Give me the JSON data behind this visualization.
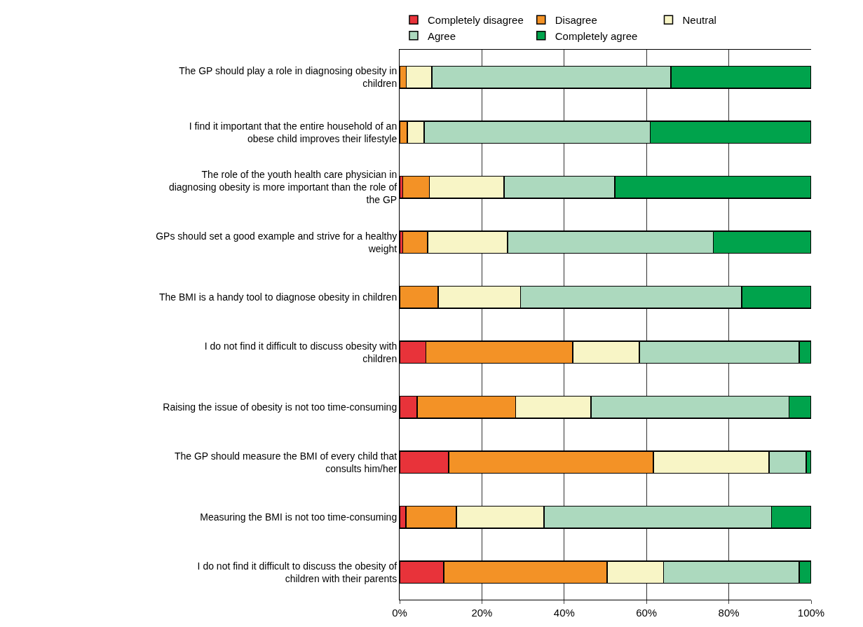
{
  "chart_data": {
    "type": "bar",
    "orientation": "horizontal",
    "stacked": true,
    "legend": "top",
    "categories": [
      "The GP should play a role in diagnosing obesity in children",
      "I find it important that the entire household of an obese child improves their lifestyle",
      "The role of the youth health care physician in diagnosing obesity is more important than the role of the GP",
      "GPs should set a good example and strive for a healthy weight",
      "The BMI is a handy tool to diagnose obesity in children",
      "I do not find it difficult to discuss obesity with children",
      "Raising the issue of obesity is not too time-consuming",
      "The GP should measure the BMI of every child that consults him/her",
      "Measuring the BMI is not too time-consuming",
      "I do not find it difficult to discuss the obesity of children with their parents"
    ],
    "series": [
      {
        "name": "Completely disagree",
        "color": "#e8333a",
        "values": [
          null,
          null,
          0.8,
          0.8,
          null,
          6.4,
          4.3,
          11.9,
          1.5,
          10.7
        ]
      },
      {
        "name": "Disagree",
        "color": "#f39226",
        "values": [
          1.6,
          1.9,
          6.4,
          6.0,
          9.4,
          35.7,
          23.9,
          49.8,
          12.3,
          39.7
        ]
      },
      {
        "name": "Neutral",
        "color": "#f8f5c6",
        "values": [
          6.2,
          4.1,
          18.2,
          19.4,
          20.0,
          16.2,
          18.3,
          28.1,
          21.3,
          13.7
        ]
      },
      {
        "name": "Agree",
        "color": "#acd9be",
        "values": [
          58.1,
          54.9,
          26.9,
          50.0,
          53.7,
          38.8,
          48.1,
          9.0,
          55.3,
          33.0
        ]
      },
      {
        "name": "Completely agree",
        "color": "#00a34c",
        "values": [
          34.1,
          39.1,
          47.7,
          23.8,
          16.9,
          2.9,
          5.4,
          1.2,
          9.6,
          2.9
        ]
      }
    ],
    "xlim": [
      0,
      100
    ],
    "xticks": [
      {
        "value": 0,
        "label": "0%"
      },
      {
        "value": 20,
        "label": "20%"
      },
      {
        "value": 40,
        "label": "40%"
      },
      {
        "value": 60,
        "label": "60%"
      },
      {
        "value": 80,
        "label": "80%"
      },
      {
        "value": 100,
        "label": "100%"
      }
    ],
    "grid": "x"
  }
}
